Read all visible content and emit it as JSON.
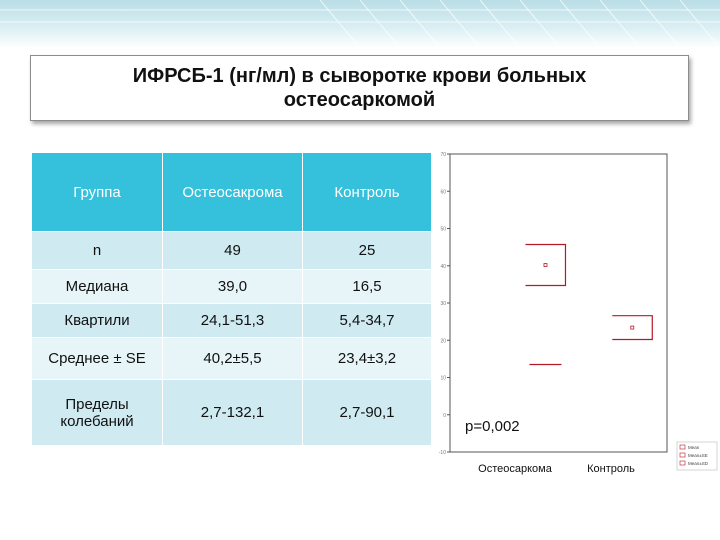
{
  "slide": {
    "title": "ИФРСБ-1 (нг/мл) в сыворотке крови больных остеосаркомой"
  },
  "table": {
    "headers": [
      "Группа",
      "Остеосакрома",
      "Контроль"
    ],
    "rows": [
      [
        "n",
        "49",
        "25"
      ],
      [
        "Медиана",
        "39,0",
        "16,5"
      ],
      [
        "Квартили",
        "24,1-51,3",
        "5,4-34,7"
      ],
      [
        "Среднее ± SE",
        "40,2±5,5",
        "23,4±3,2"
      ],
      [
        "Пределы колебаний",
        "2,7-132,1",
        "2,7-90,1"
      ]
    ]
  },
  "chart_data": {
    "type": "box",
    "categories": [
      "Остеосаркома",
      "Контроль"
    ],
    "ylim": [
      -10,
      70
    ],
    "yticks": [
      "70",
      "60",
      "50",
      "40",
      "30",
      "20",
      "10",
      "0",
      "-10"
    ],
    "boxes": [
      {
        "category": "Остеосаркома",
        "mean": 40.2,
        "mean_plus_se": 45.7,
        "mean_minus_se": 34.7,
        "mean_plus_sd": 45.7,
        "mean_minus_sd": 13.5
      },
      {
        "category": "Контроль",
        "mean": 23.4,
        "mean_plus_se": 26.6,
        "mean_minus_se": 20.2,
        "mean_plus_sd": 26.6,
        "mean_minus_sd": 20.2
      }
    ],
    "annotation": "p=0,002",
    "legend": [
      "Mean",
      "Mean±SE",
      "Mean±SD"
    ],
    "colors": {
      "box": "#b21a2a",
      "axis": "#555555",
      "tick_text": "#777777"
    }
  }
}
